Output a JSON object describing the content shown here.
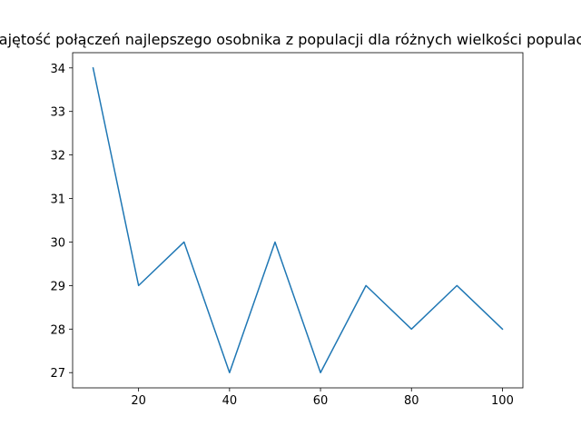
{
  "chart_data": {
    "type": "line",
    "title": "Zajętość połączeń najlepszego osobnika z populacji dla różnych wielkości populacji",
    "xlabel": "",
    "ylabel": "",
    "x": [
      10,
      20,
      30,
      40,
      50,
      60,
      70,
      80,
      90,
      100
    ],
    "series": [
      {
        "values": [
          34,
          29,
          30,
          27,
          30,
          27,
          29,
          28,
          29,
          28
        ],
        "color": "#1f77b4"
      }
    ],
    "xlim": [
      5.5,
      104.5
    ],
    "ylim": [
      26.65,
      34.35
    ],
    "xticks": [
      20,
      40,
      60,
      80,
      100
    ],
    "yticks": [
      27,
      28,
      29,
      30,
      31,
      32,
      33,
      34
    ],
    "grid": false,
    "legend": "none"
  }
}
